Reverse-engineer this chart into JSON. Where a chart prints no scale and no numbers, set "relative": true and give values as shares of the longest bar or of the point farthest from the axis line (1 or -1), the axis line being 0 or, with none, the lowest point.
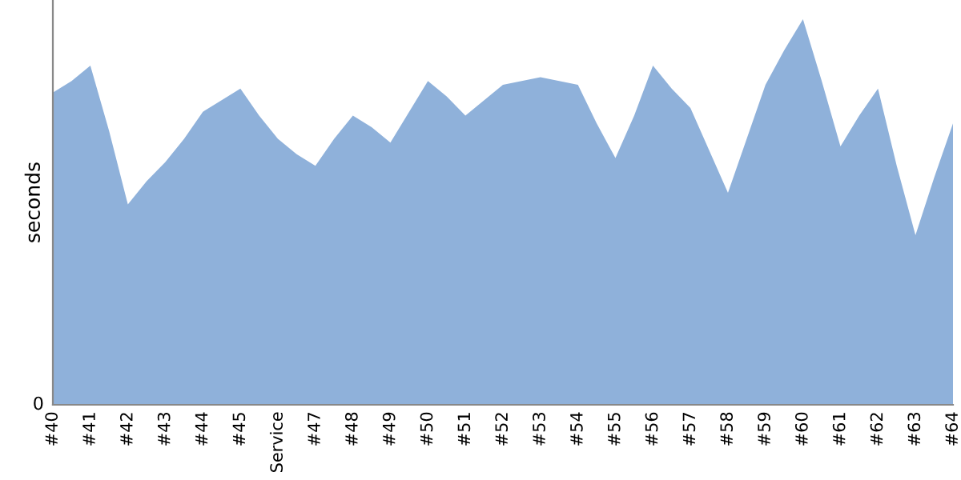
{
  "chart_data": {
    "type": "area",
    "ylabel": "seconds",
    "relative": true,
    "annotations": [
      "0"
    ],
    "grid": false,
    "legend": false,
    "categories": [
      "#40",
      null,
      "#41",
      null,
      "#42",
      null,
      "#43",
      null,
      "#44",
      null,
      "#45",
      null,
      "Service",
      null,
      "#47",
      null,
      "#48",
      null,
      "#49",
      null,
      "#50",
      null,
      "#51",
      null,
      "#52",
      null,
      "#53",
      null,
      "#54",
      null,
      "#55",
      null,
      "#56",
      null,
      "#57",
      null,
      "#58",
      null,
      "#59",
      null,
      "#60",
      null,
      "#61",
      null,
      "#62",
      null,
      "#63",
      null,
      "#64"
    ],
    "series": [
      {
        "color": "#8fb1da",
        "values": [
          0.81,
          0.84,
          0.88,
          0.71,
          0.52,
          0.58,
          0.63,
          0.69,
          0.76,
          0.79,
          0.82,
          0.75,
          0.69,
          0.65,
          0.62,
          0.69,
          0.75,
          0.72,
          0.68,
          0.76,
          0.84,
          0.8,
          0.75,
          0.79,
          0.83,
          0.84,
          0.85,
          0.84,
          0.83,
          0.73,
          0.64,
          0.75,
          0.88,
          0.82,
          0.77,
          0.66,
          0.55,
          0.69,
          0.83,
          0.92,
          1,
          0.84,
          0.67,
          0.75,
          0.82,
          0.62,
          0.44,
          0.59,
          0.73
        ]
      }
    ]
  }
}
